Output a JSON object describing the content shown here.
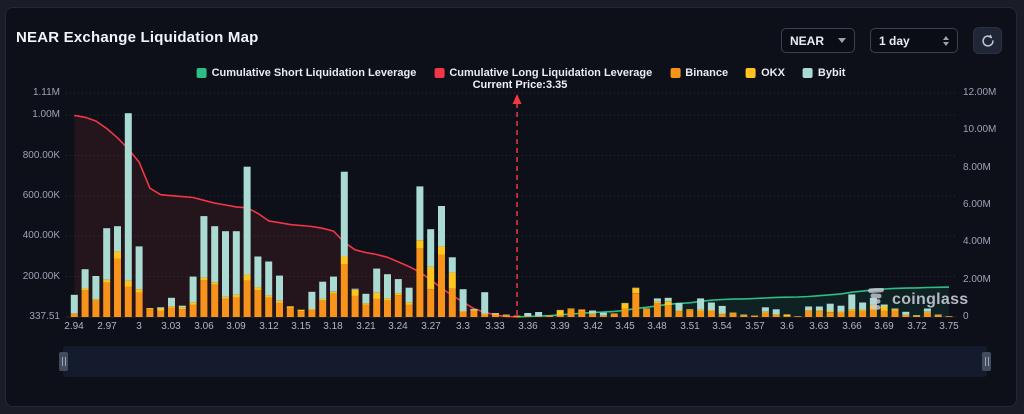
{
  "header": {
    "title": "NEAR Exchange Liquidation Map",
    "symbol_select": {
      "value": "NEAR"
    },
    "interval_select": {
      "value": "1 day"
    }
  },
  "legend": [
    {
      "label": "Cumulative Short Liquidation Leverage",
      "color": "#2ebd85"
    },
    {
      "label": "Cumulative Long Liquidation Leverage",
      "color": "#f23645"
    },
    {
      "label": "Binance",
      "color": "#f7931a"
    },
    {
      "label": "OKX",
      "color": "#ffc51d"
    },
    {
      "label": "Bybit",
      "color": "#a9dbd3"
    }
  ],
  "current_price_label": "Current Price:3.35",
  "watermark": "coinglass",
  "chart_data": {
    "type": "bar",
    "title": "NEAR Exchange Liquidation Map",
    "grid": "dotted-horizontal",
    "price_min": 2.94,
    "price_max": 3.75,
    "price_step": 0.01,
    "current_price": 3.35,
    "x_ticks": [
      "2.94",
      "2.97",
      "3",
      "3.03",
      "3.06",
      "3.09",
      "3.12",
      "3.15",
      "3.18",
      "3.21",
      "3.24",
      "3.27",
      "3.3",
      "3.33",
      "3.36",
      "3.39",
      "3.42",
      "3.45",
      "3.48",
      "3.51",
      "3.54",
      "3.57",
      "3.6",
      "3.63",
      "3.66",
      "3.69",
      "3.72",
      "3.75"
    ],
    "left_axis": {
      "max": 1110,
      "unit": "K",
      "labels": [
        [
          "1.11M",
          1110
        ],
        [
          "1.00M",
          1000
        ],
        [
          "800.00K",
          800
        ],
        [
          "600.00K",
          600
        ],
        [
          "400.00K",
          400
        ],
        [
          "200.00K",
          200
        ],
        [
          "337.51",
          0
        ]
      ]
    },
    "right_axis": {
      "max": 12,
      "unit": "M",
      "labels": [
        [
          "12.00M",
          12
        ],
        [
          "10.00M",
          10
        ],
        [
          "8.00M",
          8
        ],
        [
          "6.00M",
          6
        ],
        [
          "4.00M",
          4
        ],
        [
          "2.00M",
          2
        ],
        [
          "0",
          0
        ]
      ]
    },
    "bar_series": [
      {
        "name": "Binance",
        "color": "#f7931a",
        "unit": "K",
        "values": [
          18,
          130,
          80,
          170,
          290,
          150,
          120,
          38,
          30,
          45,
          38,
          60,
          180,
          160,
          90,
          95,
          180,
          130,
          95,
          70,
          45,
          28,
          35,
          80,
          115,
          262,
          105,
          60,
          90,
          80,
          108,
          60,
          340,
          138,
          310,
          140,
          25,
          30,
          12,
          12,
          8,
          5,
          4,
          4,
          5,
          8,
          38,
          32,
          14,
          6,
          16,
          42,
          118,
          38,
          68,
          58,
          28,
          34,
          30,
          30,
          14,
          18,
          8,
          5,
          22,
          10,
          4,
          4,
          30,
          28,
          24,
          22,
          30,
          30,
          35,
          30,
          32,
          8,
          6,
          22,
          8,
          4
        ]
      },
      {
        "name": "OKX",
        "color": "#ffc51d",
        "unit": "K",
        "values": [
          0,
          12,
          8,
          15,
          35,
          30,
          18,
          6,
          12,
          8,
          10,
          12,
          15,
          12,
          10,
          15,
          30,
          18,
          12,
          10,
          8,
          8,
          5,
          10,
          10,
          38,
          30,
          8,
          30,
          12,
          10,
          12,
          40,
          110,
          40,
          80,
          5,
          5,
          5,
          4,
          2,
          2,
          0,
          0,
          2,
          25,
          4,
          5,
          4,
          2,
          2,
          26,
          25,
          4,
          8,
          20,
          6,
          4,
          6,
          5,
          4,
          4,
          2,
          2,
          4,
          3,
          9,
          1,
          4,
          5,
          6,
          5,
          8,
          6,
          25,
          22,
          6,
          3,
          2,
          4,
          2,
          1
        ]
      },
      {
        "name": "Bybit",
        "color": "#a9dbd3",
        "unit": "K",
        "values": [
          92,
          95,
          115,
          255,
          125,
          830,
          212,
          0,
          6,
          42,
          8,
          128,
          305,
          278,
          325,
          315,
          535,
          152,
          168,
          125,
          0,
          0,
          85,
          85,
          75,
          420,
          5,
          47,
          120,
          120,
          70,
          73,
          267,
          187,
          200,
          76,
          108,
          5,
          106,
          4,
          2,
          0,
          16,
          21,
          0,
          2,
          0,
          0,
          14,
          14,
          0,
          2,
          2,
          0,
          16,
          17,
          36,
          0,
          56,
          37,
          37,
          0,
          2,
          1,
          22,
          25,
          1,
          1,
          18,
          19,
          36,
          29,
          74,
          36,
          35,
          10,
          4,
          15,
          2,
          16,
          2,
          1
        ]
      }
    ],
    "long_line": {
      "name": "Cumulative Long Liquidation Leverage",
      "color": "#f23645",
      "fill": "rgba(242,54,69,0.10)",
      "price_start": 2.94,
      "unit": "M",
      "values": [
        10.8,
        10.7,
        10.5,
        10.1,
        9.6,
        9.0,
        8.3,
        6.9,
        6.55,
        6.5,
        6.45,
        6.4,
        6.25,
        6.1,
        6.0,
        5.9,
        5.85,
        5.55,
        5.15,
        5.05,
        4.95,
        4.9,
        4.85,
        4.75,
        4.6,
        4.0,
        3.6,
        3.45,
        3.35,
        3.2,
        2.95,
        2.7,
        2.4,
        2.0,
        1.55,
        1.15,
        0.8,
        0.45,
        0.25,
        0.1,
        0.03,
        0
      ]
    },
    "short_line": {
      "name": "Cumulative Short Liquidation Leverage",
      "color": "#2ebd85",
      "fill": "rgba(46,189,133,0.10)",
      "price_start": 3.35,
      "unit": "M",
      "values": [
        0,
        0.03,
        0.05,
        0.07,
        0.12,
        0.16,
        0.2,
        0.24,
        0.27,
        0.3,
        0.36,
        0.46,
        0.52,
        0.6,
        0.68,
        0.73,
        0.76,
        0.84,
        0.9,
        0.94,
        0.96,
        0.97,
        0.99,
        1.02,
        1.05,
        1.06,
        1.07,
        1.1,
        1.14,
        1.19,
        1.24,
        1.33,
        1.39,
        1.45,
        1.5,
        1.53,
        1.55,
        1.56,
        1.58,
        1.59,
        1.6
      ]
    }
  }
}
